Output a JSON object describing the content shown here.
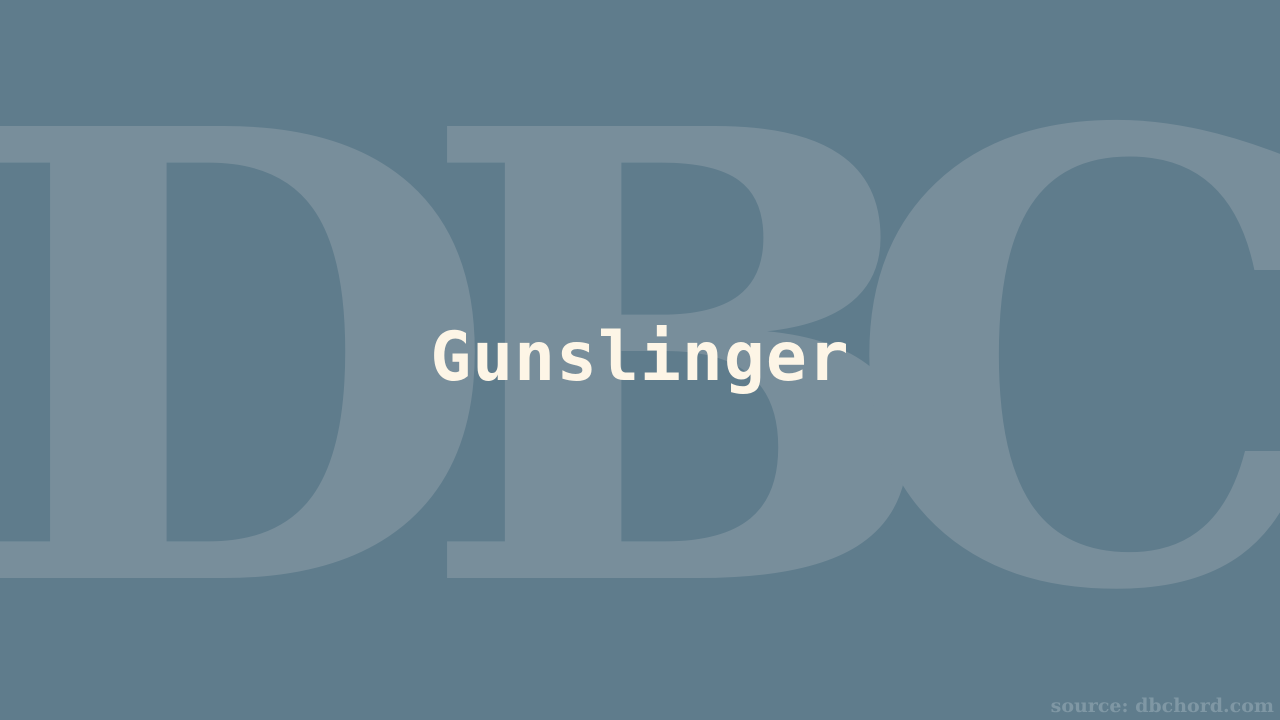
{
  "watermark": {
    "letter_1": "D",
    "letter_2": "B",
    "letter_3": "C"
  },
  "title": "Gunslinger",
  "source": "source: dbchord.com",
  "colors": {
    "background": "#5f7c8c",
    "watermark": "#788e9b",
    "title": "#fdf5e6",
    "source": "#7f97a4"
  }
}
